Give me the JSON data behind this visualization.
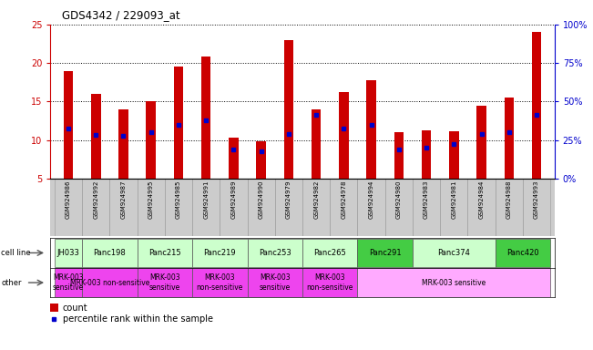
{
  "title": "GDS4342 / 229093_at",
  "samples": [
    "GSM924986",
    "GSM924992",
    "GSM924987",
    "GSM924995",
    "GSM924985",
    "GSM924991",
    "GSM924989",
    "GSM924990",
    "GSM924979",
    "GSM924982",
    "GSM924978",
    "GSM924994",
    "GSM924980",
    "GSM924983",
    "GSM924981",
    "GSM924984",
    "GSM924988",
    "GSM924993"
  ],
  "counts": [
    19.0,
    16.0,
    14.0,
    15.0,
    19.5,
    20.8,
    10.3,
    9.8,
    23.0,
    14.0,
    16.2,
    17.8,
    11.0,
    11.3,
    11.1,
    14.5,
    15.5,
    24.0
  ],
  "percentile_ranks": [
    11.5,
    10.7,
    10.5,
    11.0,
    12.0,
    12.5,
    8.8,
    8.5,
    10.8,
    13.3,
    11.5,
    12.0,
    8.8,
    9.0,
    9.5,
    10.8,
    11.0,
    13.3
  ],
  "cell_lines": [
    {
      "name": "JH033",
      "start": 0,
      "end": 1,
      "color": "#ccffcc"
    },
    {
      "name": "Panc198",
      "start": 1,
      "end": 3,
      "color": "#ccffcc"
    },
    {
      "name": "Panc215",
      "start": 3,
      "end": 5,
      "color": "#ccffcc"
    },
    {
      "name": "Panc219",
      "start": 5,
      "end": 7,
      "color": "#ccffcc"
    },
    {
      "name": "Panc253",
      "start": 7,
      "end": 9,
      "color": "#ccffcc"
    },
    {
      "name": "Panc265",
      "start": 9,
      "end": 11,
      "color": "#ccffcc"
    },
    {
      "name": "Panc291",
      "start": 11,
      "end": 13,
      "color": "#44cc44"
    },
    {
      "name": "Panc374",
      "start": 13,
      "end": 16,
      "color": "#ccffcc"
    },
    {
      "name": "Panc420",
      "start": 16,
      "end": 18,
      "color": "#44cc44"
    }
  ],
  "other_rows": [
    {
      "label": "MRK-003\nsensitive",
      "start": 0,
      "end": 1,
      "color": "#ee44ee"
    },
    {
      "label": "MRK-003 non-sensitive",
      "start": 1,
      "end": 3,
      "color": "#ee44ee"
    },
    {
      "label": "MRK-003\nsensitive",
      "start": 3,
      "end": 5,
      "color": "#ee44ee"
    },
    {
      "label": "MRK-003\nnon-sensitive",
      "start": 5,
      "end": 7,
      "color": "#ee44ee"
    },
    {
      "label": "MRK-003\nsensitive",
      "start": 7,
      "end": 9,
      "color": "#ee44ee"
    },
    {
      "label": "MRK-003\nnon-sensitive",
      "start": 9,
      "end": 11,
      "color": "#ee44ee"
    },
    {
      "label": "MRK-003 sensitive",
      "start": 11,
      "end": 18,
      "color": "#ffaaff"
    }
  ],
  "ylim": [
    5,
    25
  ],
  "yticks": [
    5,
    10,
    15,
    20,
    25
  ],
  "bar_color": "#cc0000",
  "dot_color": "#0000cc",
  "bar_width": 0.35,
  "bg_color": "#ffffff",
  "left_label_color": "#cc0000",
  "right_label_color": "#0000cc",
  "cell_line_label": "cell line",
  "other_label": "other",
  "legend_count": "count",
  "legend_pct": "percentile rank within the sample",
  "sample_bg": "#cccccc"
}
